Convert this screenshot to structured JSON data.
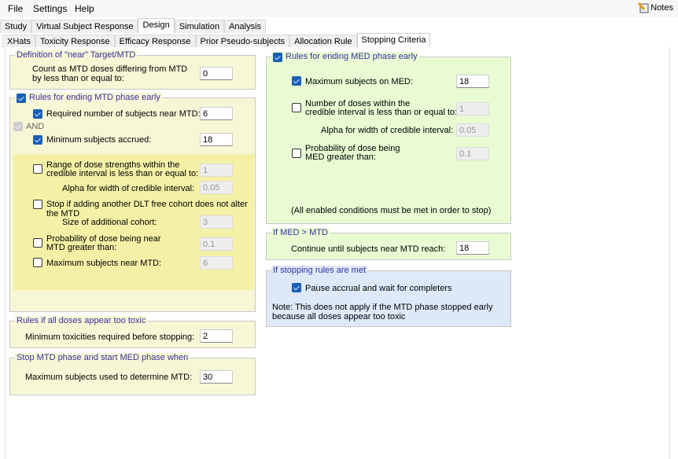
{
  "menu": {
    "file": "File",
    "settings": "Settings",
    "help": "Help",
    "notes": "Notes"
  },
  "main_tabs": [
    "Study",
    "Virtual Subject Response",
    "Design",
    "Simulation",
    "Analysis"
  ],
  "main_tab_active": "Design",
  "sub_tabs": [
    "XHats",
    "Toxicity Response",
    "Efficacy Response",
    "Prior Pseudo-subjects",
    "Allocation Rule",
    "Stopping Criteria"
  ],
  "sub_tab_active": "Stopping Criteria",
  "near": {
    "title": "Definition of \"near\" Target/MTD",
    "label1": "Count as MTD doses differing from MTD",
    "label2": "by less than or equal to:",
    "value": "0"
  },
  "mtd_early": {
    "title": "Rules for ending MTD phase early",
    "checked": true,
    "required_label": "Required number of subjects near MTD:",
    "required_value": "6",
    "required_checked": true,
    "and_label": "AND",
    "minimum_label": "Minimum subjects accrued:",
    "minimum_value": "18",
    "minimum_checked": true,
    "range_label1": "Range of dose strengths within the",
    "range_label2": "credible interval is less than or equal to:",
    "range_value": "1",
    "range_checked": false,
    "alpha_label": "Alpha for width of credible interval:",
    "alpha_value": "0.05",
    "stop_label": "Stop if adding another DLT free cohort does not alter the MTD",
    "stop_checked": false,
    "size_label": "Size of additional cohort:",
    "size_value": "3",
    "prob_label1": "Probability of dose being near",
    "prob_label2": "MTD greater than:",
    "prob_value": "0.1",
    "prob_checked": false,
    "max_label": "Maximum subjects near MTD:",
    "max_value": "6",
    "max_checked": false
  },
  "toxic": {
    "title": "Rules if all doses appear too toxic",
    "label": "Minimum toxicities required before stopping:",
    "value": "2"
  },
  "stop_mtd": {
    "title": "Stop MTD phase and start MED phase when",
    "label": "Maximum subjects used to determine MTD:",
    "value": "30"
  },
  "med_early": {
    "title": "Rules for ending MED phase early",
    "checked": true,
    "max_label": "Maximum subjects on MED:",
    "max_value": "18",
    "max_checked": true,
    "num_label1": "Number of doses within the",
    "num_label2": "credible interval is less than or equal to:",
    "num_value": "1",
    "num_checked": false,
    "alpha_label": "Alpha for width of credible interval:",
    "alpha_value": "0.05",
    "prob_label1": "Probability of dose being",
    "prob_label2": "MED greater than:",
    "prob_value": "0.1",
    "prob_checked": false,
    "note": "(All enabled conditions must be met in order to stop)"
  },
  "med_gt_mtd": {
    "title": "If MED > MTD",
    "label": "Continue until subjects near MTD reach:",
    "value": "18"
  },
  "stopping_met": {
    "title": "If stopping rules are met",
    "pause_label": "Pause accrual and wait for completers",
    "pause_checked": true,
    "note1": "Note: This does not apply if the MTD phase stopped early",
    "note2": "because all doses appear too toxic"
  }
}
